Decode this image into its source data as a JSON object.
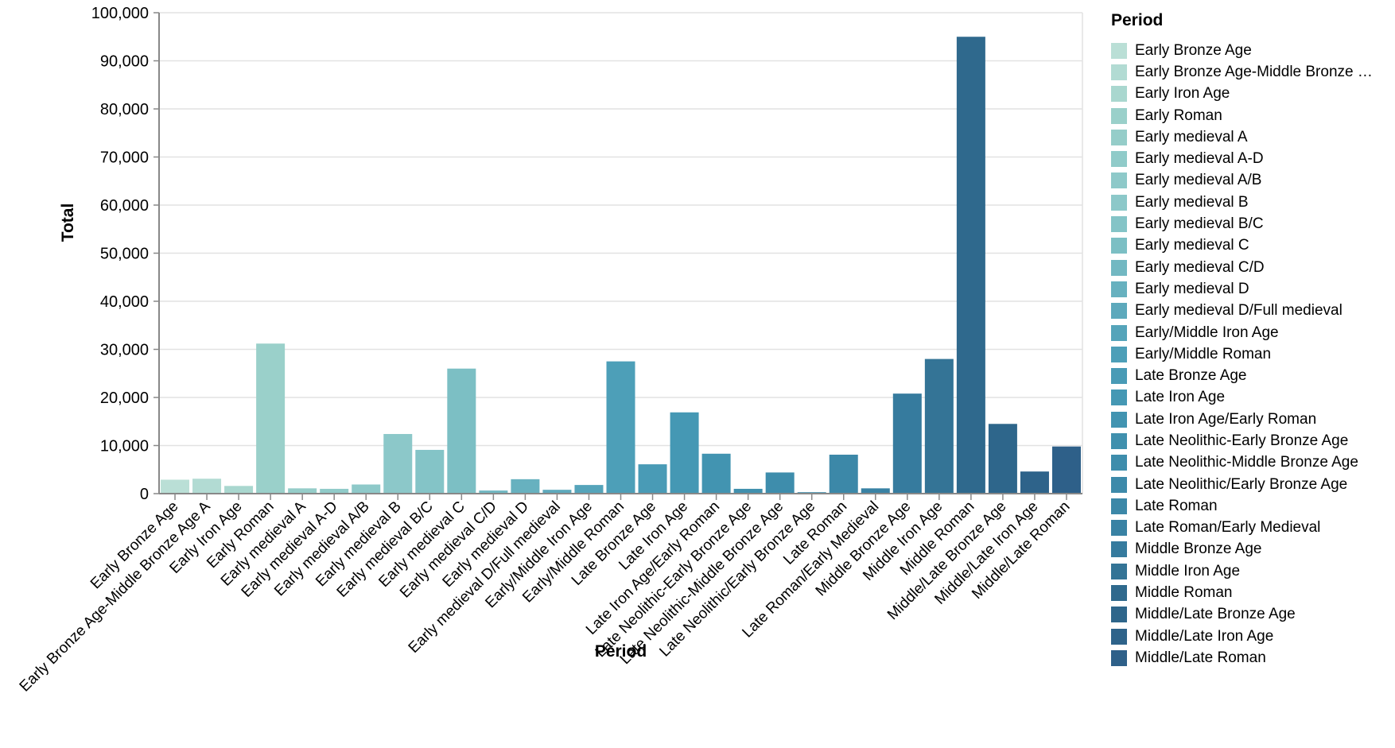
{
  "page": {
    "background": "#ffffff"
  },
  "chart_data": {
    "type": "bar",
    "title": "",
    "xlabel": "Period",
    "ylabel": "Total",
    "ylim": [
      0,
      100000
    ],
    "y_tick_interval": 10000,
    "y_tick_labels": [
      "0",
      "10,000",
      "20,000",
      "30,000",
      "40,000",
      "50,000",
      "60,000",
      "70,000",
      "80,000",
      "90,000",
      "100,000"
    ],
    "grid": true,
    "legend_position": "right",
    "legend_title": "Period",
    "axis_color": "#888888",
    "grid_color": "#e2e2e2",
    "categories": [
      "Early Bronze Age",
      "Early Bronze Age-Middle Bronze Age A",
      "Early Iron Age",
      "Early Roman",
      "Early medieval A",
      "Early medieval A-D",
      "Early medieval A/B",
      "Early medieval B",
      "Early medieval B/C",
      "Early medieval C",
      "Early medieval C/D",
      "Early medieval D",
      "Early medieval D/Full medieval",
      "Early/Middle Iron Age",
      "Early/Middle Roman",
      "Late Bronze Age",
      "Late Iron Age",
      "Late Iron Age/Early Roman",
      "Late Neolithic-Early Bronze Age",
      "Late Neolithic-Middle Bronze Age",
      "Late Neolithic/Early Bronze Age",
      "Late Roman",
      "Late Roman/Early Medieval",
      "Middle Bronze Age",
      "Middle Iron Age",
      "Middle Roman",
      "Middle/Late Bronze Age",
      "Middle/Late Iron Age",
      "Middle/Late Roman"
    ],
    "values": [
      2900,
      3100,
      1600,
      31200,
      1100,
      1000,
      1900,
      12400,
      9100,
      26000,
      650,
      3000,
      800,
      1800,
      27500,
      6100,
      16900,
      8300,
      1000,
      4400,
      300,
      8100,
      1100,
      20800,
      28000,
      95000,
      14500,
      4600,
      9800
    ],
    "colors": [
      "#badfd6",
      "#b2dbd3",
      "#a9d7cf",
      "#9ad0ca",
      "#95cdc9",
      "#90cbc9",
      "#8ec9c9",
      "#8cc8c9",
      "#84c4c7",
      "#7cbfc4",
      "#72b8c2",
      "#67b1bf",
      "#5da9bc",
      "#55a4ba",
      "#4d9fb8",
      "#499bb6",
      "#4598b4",
      "#4294b1",
      "#4090ae",
      "#3e8dac",
      "#3d8aaa",
      "#3c88a8",
      "#3982a4",
      "#367b9e",
      "#347496",
      "#2f698d",
      "#2e668b",
      "#2e638a",
      "#2e6089"
    ],
    "legend_labels": [
      "Early Bronze Age",
      "Early Bronze Age-Middle Bronze …",
      "Early Iron Age",
      "Early Roman",
      "Early medieval A",
      "Early medieval A-D",
      "Early medieval A/B",
      "Early medieval B",
      "Early medieval B/C",
      "Early medieval C",
      "Early medieval C/D",
      "Early medieval D",
      "Early medieval D/Full medieval",
      "Early/Middle Iron Age",
      "Early/Middle Roman",
      "Late Bronze Age",
      "Late Iron Age",
      "Late Iron Age/Early Roman",
      "Late Neolithic-Early Bronze Age",
      "Late Neolithic-Middle Bronze Age",
      "Late Neolithic/Early Bronze Age",
      "Late Roman",
      "Late Roman/Early Medieval",
      "Middle Bronze Age",
      "Middle Iron Age",
      "Middle Roman",
      "Middle/Late Bronze Age",
      "Middle/Late Iron Age",
      "Middle/Late Roman"
    ]
  }
}
